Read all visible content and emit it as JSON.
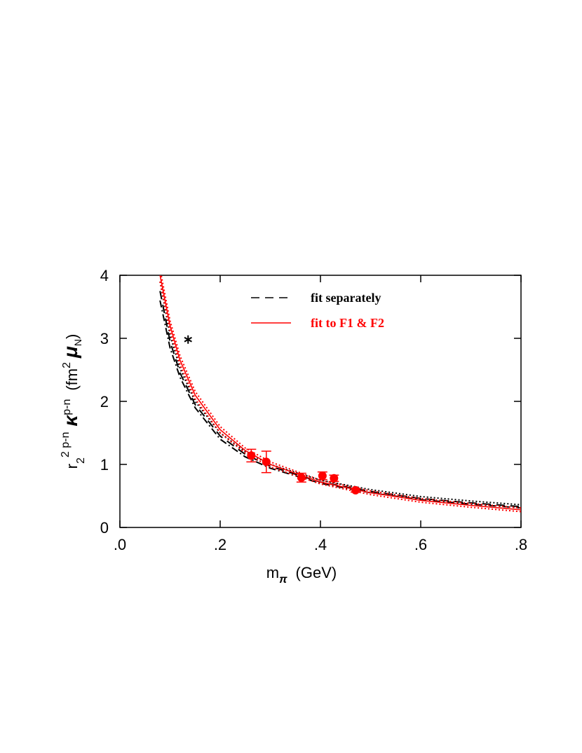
{
  "chart_data": {
    "type": "line",
    "x_label": {
      "main": "m",
      "sub": "π",
      "unit": "(GeV)"
    },
    "y_label": {
      "r": "r",
      "r_sub": "2",
      "r_sup": "2 p-n",
      "kappa": "κ",
      "kappa_sup": "p-n",
      "open": "(fm",
      "fm_sup": "2",
      "mu": "μ",
      "mu_sub": "N",
      "close": ")"
    },
    "xlim": [
      0,
      0.8
    ],
    "ylim": [
      0,
      4
    ],
    "xticks": [
      {
        "value": 0,
        "label": ".0"
      },
      {
        "value": 0.2,
        "label": ".2"
      },
      {
        "value": 0.4,
        "label": ".4"
      },
      {
        "value": 0.6,
        "label": ".6"
      },
      {
        "value": 0.8,
        "label": ".8"
      }
    ],
    "yticks": [
      0,
      1,
      2,
      3,
      4
    ],
    "series": [
      {
        "name": "fit separately",
        "color": "#000000",
        "dash": "dashed",
        "x": [
          0.08,
          0.1,
          0.12,
          0.15,
          0.2,
          0.25,
          0.3,
          0.4,
          0.5,
          0.6,
          0.7,
          0.8
        ],
        "values": [
          3.75,
          2.95,
          2.45,
          1.95,
          1.45,
          1.16,
          0.97,
          0.72,
          0.57,
          0.46,
          0.39,
          0.33
        ]
      },
      {
        "color": "#000000",
        "dash": "dotted",
        "x": [
          0.08,
          0.1,
          0.12,
          0.15,
          0.2,
          0.25,
          0.3,
          0.4,
          0.5,
          0.6,
          0.7,
          0.8
        ],
        "values": [
          3.9,
          3.05,
          2.52,
          2.0,
          1.5,
          1.2,
          1.0,
          0.75,
          0.6,
          0.49,
          0.42,
          0.36
        ]
      },
      {
        "color": "#000000",
        "dash": "dashdot",
        "x": [
          0.08,
          0.1,
          0.12,
          0.15,
          0.2,
          0.25,
          0.3,
          0.4,
          0.5,
          0.6,
          0.7,
          0.8
        ],
        "values": [
          3.6,
          2.85,
          2.38,
          1.9,
          1.4,
          1.12,
          0.94,
          0.7,
          0.55,
          0.44,
          0.37,
          0.31
        ]
      },
      {
        "name": "fit to F1 & F2",
        "color": "#ff0000",
        "dash": "solid",
        "x": [
          0.08,
          0.1,
          0.12,
          0.15,
          0.2,
          0.25,
          0.3,
          0.4,
          0.5,
          0.6,
          0.7,
          0.8
        ],
        "values": [
          4.0,
          3.2,
          2.65,
          2.1,
          1.55,
          1.22,
          1.0,
          0.72,
          0.55,
          0.43,
          0.35,
          0.28
        ]
      },
      {
        "color": "#ff0000",
        "dash": "dotted",
        "x": [
          0.08,
          0.1,
          0.12,
          0.15,
          0.2,
          0.25,
          0.3,
          0.4,
          0.5,
          0.6,
          0.7,
          0.8
        ],
        "values": [
          4.1,
          3.28,
          2.72,
          2.16,
          1.6,
          1.26,
          1.04,
          0.75,
          0.58,
          0.46,
          0.38,
          0.31
        ]
      },
      {
        "color": "#ff0000",
        "dash": "dotted",
        "x": [
          0.08,
          0.1,
          0.12,
          0.15,
          0.2,
          0.25,
          0.3,
          0.4,
          0.5,
          0.6,
          0.7,
          0.8
        ],
        "values": [
          3.9,
          3.12,
          2.58,
          2.04,
          1.5,
          1.18,
          0.96,
          0.69,
          0.52,
          0.4,
          0.32,
          0.25
        ]
      }
    ],
    "points": {
      "color": "#ff0000",
      "x": [
        0.262,
        0.292,
        0.362,
        0.404,
        0.427,
        0.47
      ],
      "values": [
        1.14,
        1.04,
        0.79,
        0.82,
        0.78,
        0.59
      ],
      "errors": [
        0.1,
        0.17,
        0.07,
        0.06,
        0.05,
        0.03
      ]
    },
    "star": {
      "color": "#000000",
      "x": 0.136,
      "y": 2.98
    }
  }
}
